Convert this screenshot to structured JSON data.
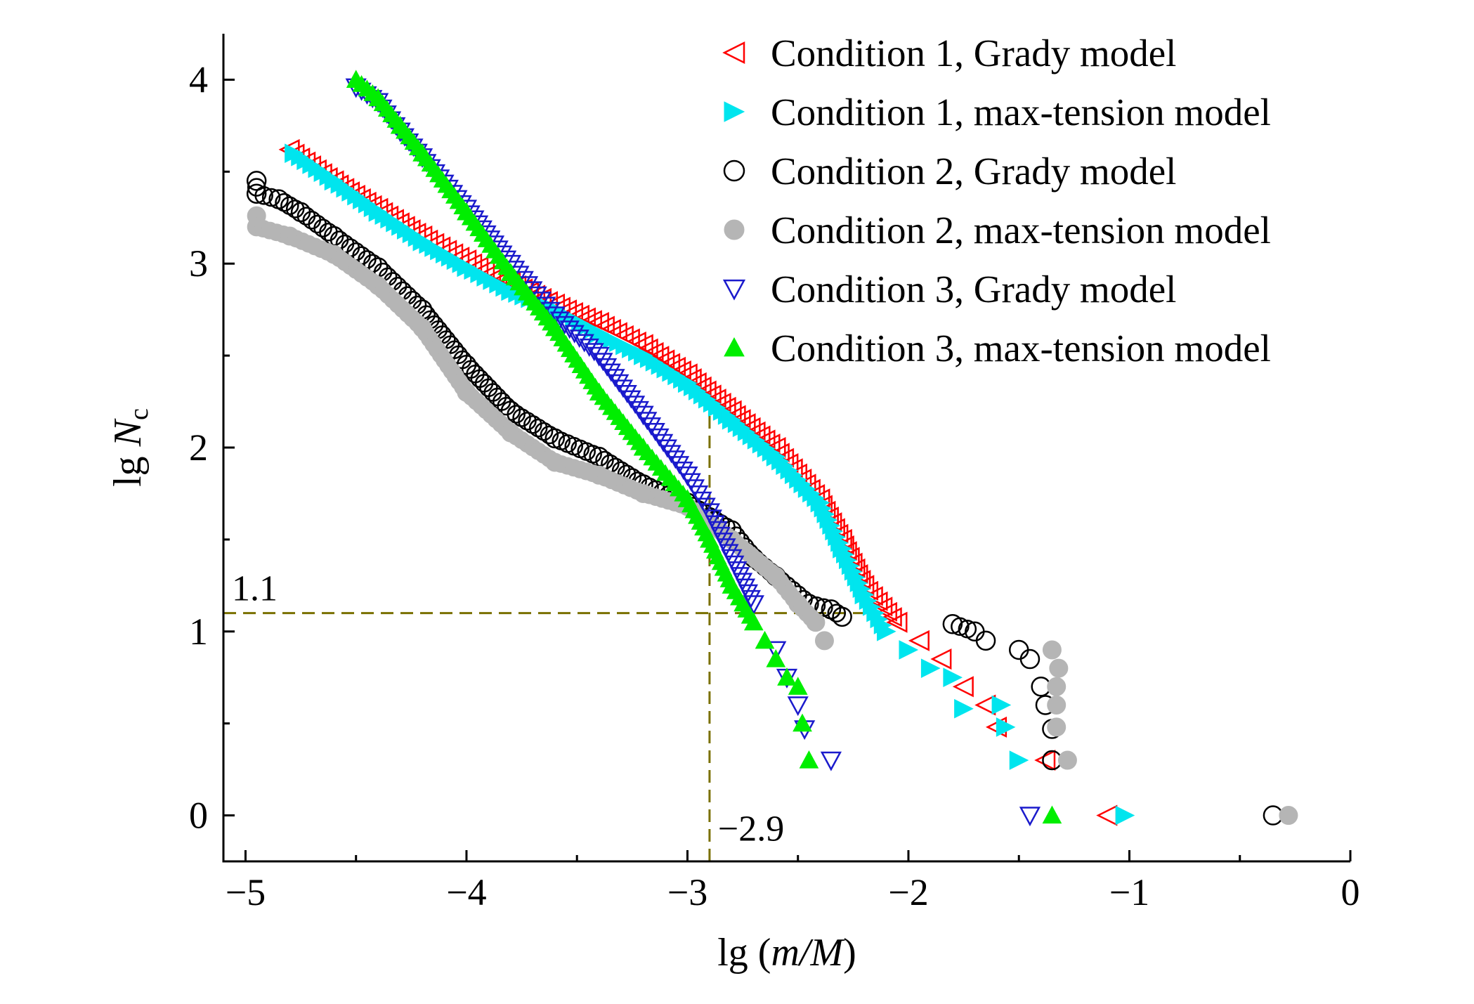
{
  "chart_data": {
    "type": "scatter",
    "title": "",
    "xlabel_prefix": "lg (",
    "xlabel_var": "m/M",
    "xlabel_suffix": ")",
    "ylabel_prefix": "lg ",
    "ylabel_var": "N",
    "ylabel_sub": "c",
    "xlim": [
      -5.1,
      0
    ],
    "ylim": [
      -0.25,
      4.25
    ],
    "x_ticks": [
      -5,
      -4,
      -3,
      -2,
      -1,
      0
    ],
    "x_tick_labels": [
      "−5",
      "−4",
      "−3",
      "−2",
      "−1",
      "0"
    ],
    "y_ticks": [
      0,
      1,
      2,
      3,
      4
    ],
    "y_tick_labels": [
      "0",
      "1",
      "2",
      "3",
      "4"
    ],
    "legend_position": "top-right",
    "guides": {
      "x": -2.9,
      "y": 1.1,
      "x_label": "−2.9",
      "y_label": "1.1"
    },
    "series": [
      {
        "name": "Condition 1, Grady model",
        "marker": "triangle-left-open",
        "color": "#ff0000",
        "points": [
          [
            -4.8,
            3.62
          ],
          [
            -4.6,
            3.45
          ],
          [
            -4.4,
            3.3
          ],
          [
            -4.2,
            3.15
          ],
          [
            -4.0,
            3.02
          ],
          [
            -3.8,
            2.9
          ],
          [
            -3.6,
            2.78
          ],
          [
            -3.4,
            2.68
          ],
          [
            -3.2,
            2.56
          ],
          [
            -3.0,
            2.4
          ],
          [
            -2.8,
            2.2
          ],
          [
            -2.6,
            2.0
          ],
          [
            -2.4,
            1.72
          ],
          [
            -2.3,
            1.5
          ],
          [
            -2.2,
            1.25
          ],
          [
            -2.05,
            1.05
          ],
          [
            -1.95,
            0.95
          ],
          [
            -1.85,
            0.85
          ],
          [
            -1.75,
            0.7
          ],
          [
            -1.65,
            0.6
          ],
          [
            -1.6,
            0.48
          ],
          [
            -1.38,
            0.3
          ],
          [
            -1.1,
            0.0
          ]
        ]
      },
      {
        "name": "Condition 1, max-tension model",
        "marker": "triangle-right-filled",
        "color": "#00e5ee",
        "points": [
          [
            -4.78,
            3.6
          ],
          [
            -4.6,
            3.45
          ],
          [
            -4.4,
            3.28
          ],
          [
            -4.2,
            3.12
          ],
          [
            -4.0,
            2.98
          ],
          [
            -3.8,
            2.85
          ],
          [
            -3.6,
            2.75
          ],
          [
            -3.4,
            2.62
          ],
          [
            -3.2,
            2.5
          ],
          [
            -3.0,
            2.35
          ],
          [
            -2.8,
            2.15
          ],
          [
            -2.6,
            1.95
          ],
          [
            -2.4,
            1.7
          ],
          [
            -2.3,
            1.45
          ],
          [
            -2.2,
            1.2
          ],
          [
            -2.1,
            1.0
          ],
          [
            -2.0,
            0.9
          ],
          [
            -1.9,
            0.8
          ],
          [
            -1.8,
            0.75
          ],
          [
            -1.75,
            0.58
          ],
          [
            -1.58,
            0.6
          ],
          [
            -1.56,
            0.48
          ],
          [
            -1.5,
            0.3
          ],
          [
            -1.02,
            0.0
          ]
        ]
      },
      {
        "name": "Condition 2, Grady model",
        "marker": "circle-open",
        "color": "#000000",
        "points": [
          [
            -4.95,
            3.45
          ],
          [
            -4.95,
            3.38
          ],
          [
            -4.85,
            3.35
          ],
          [
            -4.75,
            3.28
          ],
          [
            -4.6,
            3.15
          ],
          [
            -4.4,
            2.98
          ],
          [
            -4.2,
            2.75
          ],
          [
            -4.0,
            2.45
          ],
          [
            -3.8,
            2.2
          ],
          [
            -3.6,
            2.05
          ],
          [
            -3.4,
            1.95
          ],
          [
            -3.2,
            1.8
          ],
          [
            -3.0,
            1.7
          ],
          [
            -2.8,
            1.55
          ],
          [
            -2.7,
            1.4
          ],
          [
            -2.6,
            1.3
          ],
          [
            -2.45,
            1.15
          ],
          [
            -2.35,
            1.12
          ],
          [
            -2.3,
            1.08
          ],
          [
            -1.8,
            1.04
          ],
          [
            -1.7,
            1.0
          ],
          [
            -1.65,
            0.95
          ],
          [
            -1.5,
            0.9
          ],
          [
            -1.45,
            0.85
          ],
          [
            -1.4,
            0.7
          ],
          [
            -1.38,
            0.6
          ],
          [
            -1.35,
            0.47
          ],
          [
            -1.35,
            0.3
          ],
          [
            -0.35,
            0.0
          ]
        ]
      },
      {
        "name": "Condition 2, max-tension model",
        "marker": "circle-filled",
        "color": "#b5b5b5",
        "points": [
          [
            -4.95,
            3.26
          ],
          [
            -4.95,
            3.2
          ],
          [
            -4.8,
            3.15
          ],
          [
            -4.6,
            3.05
          ],
          [
            -4.4,
            2.88
          ],
          [
            -4.2,
            2.65
          ],
          [
            -4.0,
            2.3
          ],
          [
            -3.8,
            2.08
          ],
          [
            -3.6,
            1.92
          ],
          [
            -3.4,
            1.85
          ],
          [
            -3.2,
            1.75
          ],
          [
            -3.0,
            1.68
          ],
          [
            -2.8,
            1.5
          ],
          [
            -2.6,
            1.3
          ],
          [
            -2.5,
            1.15
          ],
          [
            -2.42,
            1.05
          ],
          [
            -2.38,
            0.95
          ],
          [
            -1.35,
            0.9
          ],
          [
            -1.32,
            0.8
          ],
          [
            -1.33,
            0.7
          ],
          [
            -1.33,
            0.6
          ],
          [
            -1.33,
            0.48
          ],
          [
            -1.28,
            0.3
          ],
          [
            -0.28,
            0.0
          ]
        ]
      },
      {
        "name": "Condition 3, Grady model",
        "marker": "triangle-down-open",
        "color": "#1a1acc",
        "points": [
          [
            -4.5,
            3.96
          ],
          [
            -4.4,
            3.88
          ],
          [
            -4.3,
            3.72
          ],
          [
            -4.2,
            3.58
          ],
          [
            -4.0,
            3.3
          ],
          [
            -3.8,
            3.0
          ],
          [
            -3.6,
            2.72
          ],
          [
            -3.4,
            2.5
          ],
          [
            -3.2,
            2.18
          ],
          [
            -3.0,
            1.85
          ],
          [
            -2.9,
            1.65
          ],
          [
            -2.8,
            1.4
          ],
          [
            -2.7,
            1.15
          ],
          [
            -2.6,
            0.9
          ],
          [
            -2.55,
            0.75
          ],
          [
            -2.5,
            0.6
          ],
          [
            -2.47,
            0.47
          ],
          [
            -2.35,
            0.3
          ],
          [
            -1.45,
            0.0
          ]
        ]
      },
      {
        "name": "Condition 3, max-tension model",
        "marker": "triangle-up-filled",
        "color": "#00ee00",
        "points": [
          [
            -4.5,
            4.0
          ],
          [
            -4.4,
            3.9
          ],
          [
            -4.3,
            3.75
          ],
          [
            -4.2,
            3.6
          ],
          [
            -4.0,
            3.28
          ],
          [
            -3.8,
            2.95
          ],
          [
            -3.6,
            2.65
          ],
          [
            -3.4,
            2.3
          ],
          [
            -3.2,
            2.0
          ],
          [
            -3.0,
            1.72
          ],
          [
            -2.9,
            1.5
          ],
          [
            -2.8,
            1.25
          ],
          [
            -2.7,
            1.05
          ],
          [
            -2.65,
            0.95
          ],
          [
            -2.6,
            0.85
          ],
          [
            -2.55,
            0.75
          ],
          [
            -2.5,
            0.7
          ],
          [
            -2.48,
            0.5
          ],
          [
            -2.45,
            0.3
          ],
          [
            -1.35,
            0.0
          ]
        ]
      }
    ]
  }
}
